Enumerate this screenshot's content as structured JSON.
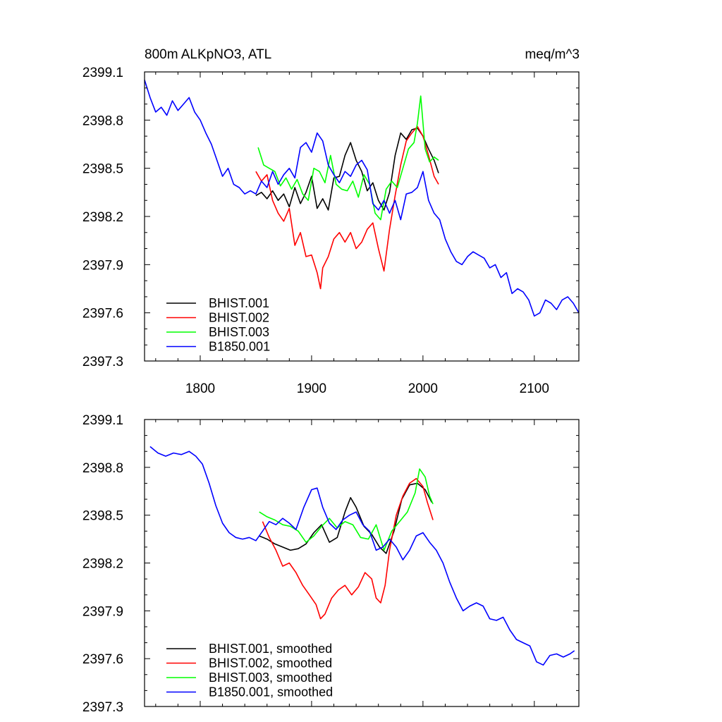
{
  "chart_data": [
    {
      "type": "line",
      "title": "800m ALKpNO3, ATL",
      "units": "meq/m^3",
      "xlim": [
        1750,
        2140
      ],
      "ylim": [
        2397.3,
        2399.1
      ],
      "xticks": [
        1800,
        1900,
        2000,
        2100
      ],
      "xtick_labels": [
        "1800",
        "1900",
        "2000",
        "2100"
      ],
      "yticks": [
        2397.3,
        2397.6,
        2397.9,
        2398.2,
        2398.5,
        2398.8,
        2399.1
      ],
      "ytick_labels": [
        "2397.3",
        "2397.6",
        "2397.9",
        "2398.2",
        "2398.5",
        "2398.8",
        "2399.1"
      ],
      "legend_position": "bottom-left",
      "series": [
        {
          "name": "BHIST.001",
          "color": "#000000",
          "x": [
            1850,
            1855,
            1860,
            1865,
            1870,
            1875,
            1880,
            1885,
            1890,
            1895,
            1900,
            1905,
            1910,
            1915,
            1920,
            1925,
            1930,
            1935,
            1940,
            1945,
            1950,
            1955,
            1960,
            1965,
            1970,
            1975,
            1980,
            1985,
            1990,
            1995,
            2000,
            2005,
            2010,
            2014
          ],
          "y": [
            2398.33,
            2398.35,
            2398.31,
            2398.36,
            2398.3,
            2398.34,
            2398.26,
            2398.38,
            2398.28,
            2398.35,
            2398.45,
            2398.25,
            2398.31,
            2398.24,
            2398.44,
            2398.45,
            2398.58,
            2398.66,
            2398.55,
            2398.48,
            2398.36,
            2398.41,
            2398.3,
            2398.24,
            2398.35,
            2398.58,
            2398.72,
            2398.68,
            2398.74,
            2398.75,
            2398.7,
            2398.62,
            2398.55,
            2398.47
          ]
        },
        {
          "name": "BHIST.002",
          "color": "#ff0000",
          "x": [
            1850,
            1855,
            1860,
            1865,
            1870,
            1875,
            1880,
            1885,
            1890,
            1895,
            1900,
            1905,
            1908,
            1910,
            1915,
            1920,
            1925,
            1930,
            1935,
            1940,
            1945,
            1950,
            1955,
            1960,
            1965,
            1970,
            1975,
            1980,
            1985,
            1990,
            1995,
            2000,
            2005,
            2010,
            2014
          ],
          "y": [
            2398.48,
            2398.42,
            2398.46,
            2398.3,
            2398.22,
            2398.17,
            2398.25,
            2398.02,
            2398.1,
            2397.95,
            2397.96,
            2397.85,
            2397.75,
            2397.88,
            2397.95,
            2398.06,
            2398.1,
            2398.04,
            2398.1,
            2398.0,
            2398.04,
            2398.12,
            2398.16,
            2398.0,
            2397.86,
            2398.12,
            2398.33,
            2398.52,
            2398.67,
            2398.72,
            2398.76,
            2398.7,
            2398.58,
            2398.45,
            2398.4
          ]
        },
        {
          "name": "BHIST.003",
          "color": "#00ff00",
          "x": [
            1852,
            1857,
            1862,
            1867,
            1872,
            1877,
            1882,
            1887,
            1892,
            1897,
            1902,
            1907,
            1912,
            1917,
            1922,
            1927,
            1932,
            1937,
            1942,
            1947,
            1952,
            1957,
            1962,
            1967,
            1972,
            1977,
            1982,
            1987,
            1992,
            1995,
            1998,
            2002,
            2006,
            2010,
            2014
          ],
          "y": [
            2398.63,
            2398.52,
            2398.5,
            2398.48,
            2398.39,
            2398.44,
            2398.37,
            2398.43,
            2398.34,
            2398.3,
            2398.5,
            2398.48,
            2398.41,
            2398.58,
            2398.4,
            2398.37,
            2398.36,
            2398.42,
            2398.32,
            2398.46,
            2398.4,
            2398.22,
            2398.18,
            2398.37,
            2398.42,
            2398.38,
            2398.5,
            2398.62,
            2398.66,
            2398.78,
            2398.95,
            2398.62,
            2398.54,
            2398.57,
            2398.55
          ]
        },
        {
          "name": "B1850.001",
          "color": "#0000ff",
          "x": [
            1750,
            1755,
            1760,
            1765,
            1770,
            1775,
            1780,
            1785,
            1790,
            1795,
            1800,
            1805,
            1810,
            1815,
            1820,
            1825,
            1830,
            1835,
            1840,
            1845,
            1850,
            1855,
            1860,
            1865,
            1870,
            1875,
            1880,
            1885,
            1890,
            1895,
            1900,
            1905,
            1910,
            1915,
            1920,
            1925,
            1930,
            1935,
            1940,
            1945,
            1950,
            1955,
            1960,
            1965,
            1970,
            1975,
            1980,
            1985,
            1990,
            1995,
            2000,
            2005,
            2010,
            2015,
            2020,
            2025,
            2030,
            2035,
            2040,
            2045,
            2050,
            2055,
            2060,
            2065,
            2070,
            2075,
            2080,
            2085,
            2090,
            2095,
            2100,
            2105,
            2110,
            2115,
            2120,
            2125,
            2130,
            2135,
            2140
          ],
          "y": [
            2399.05,
            2398.94,
            2398.85,
            2398.88,
            2398.83,
            2398.92,
            2398.86,
            2398.9,
            2398.94,
            2398.85,
            2398.8,
            2398.72,
            2398.65,
            2398.55,
            2398.45,
            2398.5,
            2398.4,
            2398.38,
            2398.34,
            2398.36,
            2398.34,
            2398.42,
            2398.38,
            2398.48,
            2398.4,
            2398.46,
            2398.5,
            2398.44,
            2398.63,
            2398.66,
            2398.6,
            2398.72,
            2398.67,
            2398.52,
            2398.46,
            2398.41,
            2398.48,
            2398.45,
            2398.52,
            2398.55,
            2398.49,
            2398.28,
            2398.24,
            2398.3,
            2398.22,
            2398.3,
            2398.18,
            2398.34,
            2398.35,
            2398.38,
            2398.48,
            2398.3,
            2398.22,
            2398.18,
            2398.06,
            2397.98,
            2397.92,
            2397.9,
            2397.95,
            2397.98,
            2397.96,
            2397.94,
            2397.88,
            2397.9,
            2397.82,
            2397.85,
            2397.72,
            2397.75,
            2397.73,
            2397.68,
            2397.58,
            2397.6,
            2397.68,
            2397.66,
            2397.62,
            2397.68,
            2397.7,
            2397.66,
            2397.6
          ]
        }
      ]
    },
    {
      "type": "line",
      "xlim": [
        1750,
        2140
      ],
      "ylim": [
        2397.3,
        2399.1
      ],
      "xticks": [
        1800,
        1900,
        2000,
        2100
      ],
      "xtick_labels": [],
      "yticks": [
        2397.3,
        2397.6,
        2397.9,
        2398.2,
        2398.5,
        2398.8,
        2399.1
      ],
      "ytick_labels": [
        "2397.3",
        "2397.6",
        "2397.9",
        "2398.2",
        "2398.5",
        "2398.8",
        "2399.1"
      ],
      "legend_position": "bottom-left",
      "series": [
        {
          "name": "BHIST.001, smoothed",
          "color": "#000000",
          "x": [
            1853,
            1860,
            1867,
            1874,
            1881,
            1888,
            1895,
            1902,
            1909,
            1916,
            1923,
            1930,
            1935,
            1940,
            1947,
            1954,
            1961,
            1967,
            1974,
            1981,
            1988,
            1995,
            2002,
            2008
          ],
          "y": [
            2398.37,
            2398.35,
            2398.32,
            2398.3,
            2398.28,
            2398.29,
            2398.32,
            2398.39,
            2398.44,
            2398.33,
            2398.36,
            2398.52,
            2398.61,
            2398.55,
            2398.43,
            2398.38,
            2398.3,
            2398.26,
            2398.4,
            2398.6,
            2398.69,
            2398.7,
            2398.66,
            2398.58
          ]
        },
        {
          "name": "BHIST.002, smoothed",
          "color": "#ff0000",
          "x": [
            1856,
            1862,
            1868,
            1874,
            1880,
            1886,
            1892,
            1898,
            1904,
            1908,
            1912,
            1918,
            1924,
            1930,
            1936,
            1942,
            1948,
            1954,
            1958,
            1962,
            1966,
            1970,
            1976,
            1982,
            1988,
            1994,
            2000,
            2004,
            2009
          ],
          "y": [
            2398.46,
            2398.36,
            2398.28,
            2398.18,
            2398.2,
            2398.14,
            2398.06,
            2398.0,
            2397.94,
            2397.85,
            2397.88,
            2397.98,
            2398.03,
            2398.06,
            2398.0,
            2398.05,
            2398.14,
            2398.1,
            2397.98,
            2397.95,
            2398.06,
            2398.28,
            2398.5,
            2398.62,
            2398.7,
            2398.73,
            2398.68,
            2398.58,
            2398.47
          ]
        },
        {
          "name": "BHIST.003, smoothed",
          "color": "#00ff00",
          "x": [
            1853,
            1860,
            1867,
            1874,
            1881,
            1888,
            1895,
            1902,
            1909,
            1916,
            1923,
            1930,
            1937,
            1944,
            1951,
            1958,
            1965,
            1972,
            1979,
            1986,
            1993,
            1997,
            2002,
            2006,
            2009
          ],
          "y": [
            2398.52,
            2398.49,
            2398.47,
            2398.44,
            2398.43,
            2398.4,
            2398.33,
            2398.37,
            2398.43,
            2398.48,
            2398.42,
            2398.46,
            2398.44,
            2398.36,
            2398.35,
            2398.44,
            2398.28,
            2398.4,
            2398.46,
            2398.52,
            2398.64,
            2398.79,
            2398.74,
            2398.62,
            2398.57
          ]
        },
        {
          "name": "B1850.001, smoothed",
          "color": "#0000ff",
          "x": [
            1755,
            1762,
            1769,
            1776,
            1783,
            1790,
            1796,
            1802,
            1808,
            1814,
            1820,
            1826,
            1832,
            1838,
            1844,
            1850,
            1856,
            1862,
            1868,
            1874,
            1880,
            1886,
            1893,
            1900,
            1905,
            1910,
            1916,
            1922,
            1928,
            1934,
            1940,
            1946,
            1952,
            1958,
            1964,
            1970,
            1976,
            1982,
            1988,
            1994,
            2000,
            2006,
            2012,
            2018,
            2024,
            2030,
            2036,
            2042,
            2048,
            2054,
            2060,
            2066,
            2072,
            2078,
            2084,
            2090,
            2096,
            2102,
            2108,
            2114,
            2120,
            2126,
            2132,
            2136
          ],
          "y": [
            2398.93,
            2398.89,
            2398.87,
            2398.89,
            2398.88,
            2398.9,
            2398.87,
            2398.82,
            2398.7,
            2398.56,
            2398.45,
            2398.39,
            2398.36,
            2398.35,
            2398.36,
            2398.34,
            2398.4,
            2398.46,
            2398.44,
            2398.48,
            2398.45,
            2398.41,
            2398.55,
            2398.66,
            2398.67,
            2398.55,
            2398.45,
            2398.41,
            2398.47,
            2398.5,
            2398.52,
            2398.44,
            2398.4,
            2398.28,
            2398.3,
            2398.35,
            2398.3,
            2398.22,
            2398.28,
            2398.37,
            2398.39,
            2398.33,
            2398.28,
            2398.2,
            2398.08,
            2397.98,
            2397.9,
            2397.93,
            2397.95,
            2397.93,
            2397.85,
            2397.84,
            2397.86,
            2397.78,
            2397.72,
            2397.7,
            2397.68,
            2397.58,
            2397.56,
            2397.62,
            2397.63,
            2397.61,
            2397.63,
            2397.65
          ]
        }
      ]
    }
  ]
}
